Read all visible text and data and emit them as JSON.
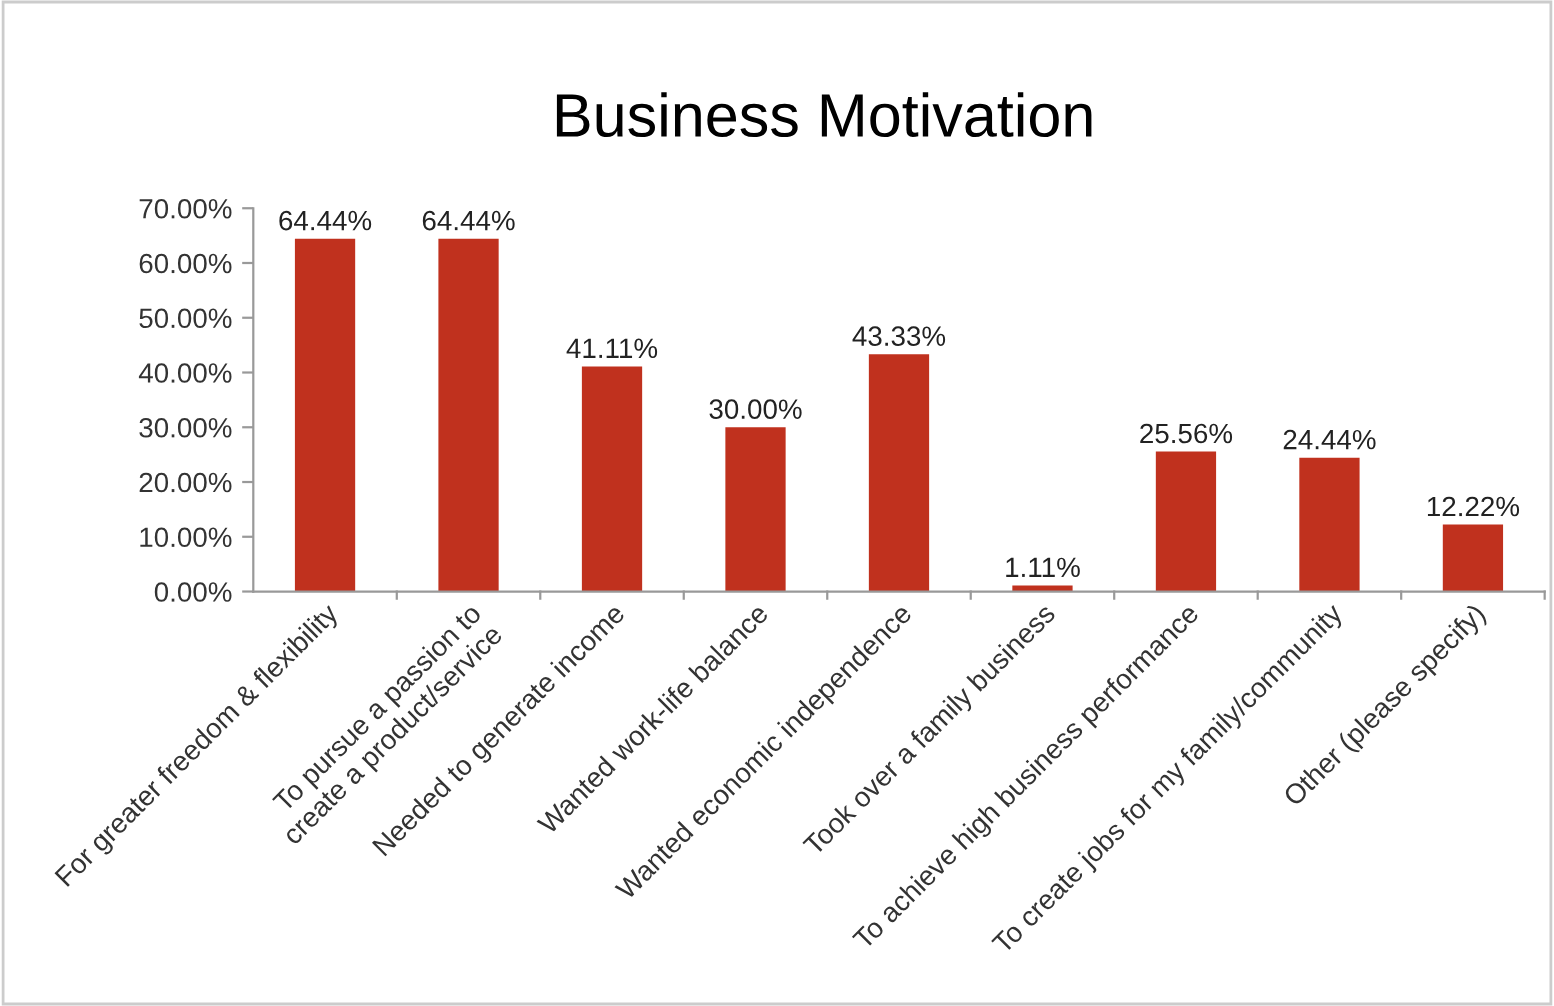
{
  "chart_data": {
    "type": "bar",
    "title": "Business Motivation",
    "categories": [
      "For greater freedom & flexibility",
      "To pursue a passion to\ncreate a product/service",
      "Needed to generate income",
      "Wanted work-life balance",
      "Wanted economic independence",
      "Took over a family business",
      "To achieve high business performance",
      "To create jobs for my family/community",
      "Other (please specify)"
    ],
    "values": [
      64.44,
      64.44,
      41.11,
      30.0,
      43.33,
      1.11,
      25.56,
      24.44,
      12.22
    ],
    "value_labels": [
      "64.44%",
      "64.44%",
      "41.11%",
      "30.00%",
      "43.33%",
      "1.11%",
      "25.56%",
      "24.44%",
      "12.22%"
    ],
    "color": "#c0311e",
    "ylim": [
      0,
      70
    ],
    "yticks": [
      {
        "value": 0,
        "label": "0.00%"
      },
      {
        "value": 10,
        "label": "10.00%"
      },
      {
        "value": 20,
        "label": "20.00%"
      },
      {
        "value": 30,
        "label": "30.00%"
      },
      {
        "value": 40,
        "label": "40.00%"
      },
      {
        "value": 50,
        "label": "50.00%"
      },
      {
        "value": 60,
        "label": "60.00%"
      },
      {
        "value": 70,
        "label": "70.00%"
      }
    ],
    "grid": false,
    "legend": false
  }
}
